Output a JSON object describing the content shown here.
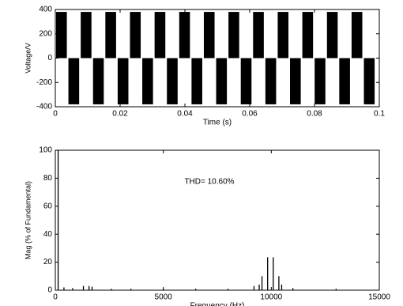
{
  "chart_data": [
    {
      "type": "bar",
      "ylabel": "Voltage/V",
      "xlabel": "Time (s)",
      "color": "#000000",
      "x": [
        0.0019,
        0.0057,
        0.0095,
        0.0133,
        0.0171,
        0.0209,
        0.0247,
        0.0285,
        0.0323,
        0.0361,
        0.0399,
        0.0437,
        0.0475,
        0.0513,
        0.0551,
        0.0589,
        0.0627,
        0.0665,
        0.0703,
        0.0741,
        0.0779,
        0.0817,
        0.0855,
        0.0893,
        0.0931,
        0.0969
      ],
      "values": [
        380,
        -380,
        380,
        -380,
        380,
        -380,
        380,
        -380,
        380,
        -380,
        380,
        -380,
        380,
        -380,
        380,
        -380,
        380,
        -380,
        380,
        -380,
        380,
        -380,
        380,
        -380,
        380,
        -380
      ],
      "xlim": [
        0,
        0.1
      ],
      "xticks": [
        0,
        0.02,
        0.04,
        0.06,
        0.08,
        0.1
      ],
      "ylim": [
        -400,
        400
      ],
      "yticks": [
        -400,
        -200,
        0,
        200,
        400
      ]
    },
    {
      "type": "stem",
      "ylabel": "Mag (% of Fundamental)",
      "xlabel": "Frequency (Hz)",
      "color": "#000000",
      "annotation": "THD= 10.60%",
      "x": [
        130,
        400,
        800,
        1300,
        1560,
        1700,
        2600,
        3500,
        5000,
        6500,
        8000,
        9200,
        9440,
        9570,
        9830,
        10090,
        10350,
        10480,
        11000,
        13000
      ],
      "values": [
        100,
        2,
        1.5,
        3,
        3,
        2.5,
        1,
        1,
        1,
        1,
        1,
        3,
        4,
        10,
        23.5,
        23.5,
        10,
        4,
        1.5,
        1
      ],
      "xlim": [
        0,
        15000
      ],
      "xticks": [
        0,
        5000,
        10000,
        15000
      ],
      "ylim": [
        0,
        100
      ],
      "yticks": [
        0,
        20,
        40,
        60,
        80,
        100
      ]
    }
  ]
}
